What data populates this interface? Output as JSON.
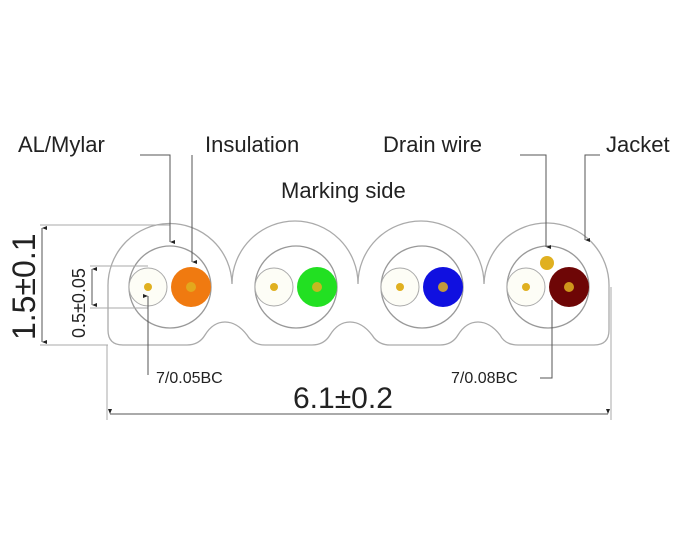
{
  "labels": {
    "al_mylar": "AL/Mylar",
    "insulation": "Insulation",
    "drain_wire": "Drain wire",
    "jacket": "Jacket",
    "marking_side": "Marking side",
    "conductor_small": "7/0.05BC",
    "conductor_drain": "7/0.08BC"
  },
  "dimensions": {
    "height": "1.5±0.1",
    "conductor": "0.5±0.05",
    "width": "6.1±0.2"
  },
  "pairs": [
    {
      "color": "#f07a10"
    },
    {
      "color": "#22e022"
    },
    {
      "color": "#1010e0"
    },
    {
      "color": "#6e0606"
    }
  ],
  "colors": {
    "line": "#aaaaaa",
    "conductor": "#e0b020",
    "text": "#222222"
  }
}
